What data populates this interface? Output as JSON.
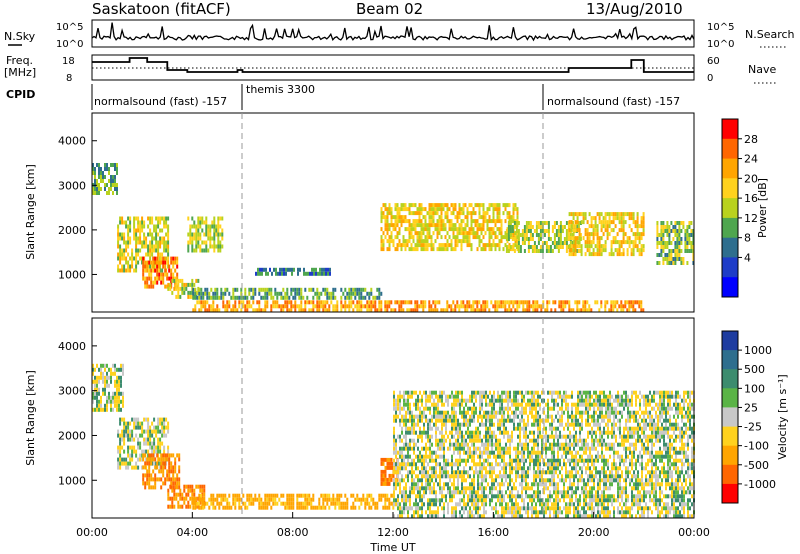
{
  "header": {
    "station": "Saskatoon (fitACF)",
    "beam": "Beam 02",
    "date": "13/Aug/2010"
  },
  "panels": {
    "nsky_label": "N.Sky",
    "nsearch_label": "N.Search",
    "freq_label_line1": "Freq.",
    "freq_label_line2": "[MHz]",
    "nave_label": "Nave",
    "cpid_label": "CPID",
    "noise_ticks_left": [
      "10^5",
      "10^0"
    ],
    "noise_ticks_right": [
      "10^5",
      "10^0"
    ],
    "freq_ticks_left": [
      "18",
      "8"
    ],
    "freq_ticks_right": [
      "60",
      "0"
    ],
    "cpid_segments": [
      "normalsound (fast) -157",
      "themis 3300",
      "normalsound (fast) -157"
    ]
  },
  "axes": {
    "ylabel": "Slant Range [km]",
    "xlabel": "Time UT",
    "y_ticks": [
      "4000",
      "3000",
      "2000",
      "1000"
    ],
    "x_ticks": [
      "00:00",
      "04:00",
      "08:00",
      "12:00",
      "16:00",
      "20:00",
      "00:00"
    ]
  },
  "colorbars": {
    "power": {
      "label": "Power [dB]",
      "ticks": [
        "28",
        "24",
        "20",
        "16",
        "12",
        "8",
        "4"
      ],
      "colors": [
        "#ff0000",
        "#ff6600",
        "#ffa500",
        "#ffd21e",
        "#b9d21e",
        "#4fa64f",
        "#2e6e8e",
        "#1e3cc8",
        "#0000ff"
      ]
    },
    "velocity": {
      "label": "Velocity [m s⁻¹]",
      "ticks": [
        "1000",
        "500",
        "100",
        "25",
        "-25",
        "-100",
        "-500",
        "-1000"
      ],
      "colors": [
        "#1e3ca0",
        "#2e6e8e",
        "#3c8c6e",
        "#5ab446",
        "#c8c8c8",
        "#ffd21e",
        "#ffa500",
        "#ff6600",
        "#ff0000"
      ]
    }
  },
  "chart_data": [
    {
      "type": "heatmap",
      "title": "Power [dB]",
      "xlabel": "Time UT",
      "ylabel": "Slant Range [km]",
      "xlim": [
        0,
        24
      ],
      "ylim": [
        180,
        4600
      ],
      "regions": [
        {
          "t": [
            0.0,
            1.0
          ],
          "r": [
            2800,
            3500
          ],
          "level": 12
        },
        {
          "t": [
            1.0,
            3.0
          ],
          "r": [
            1100,
            2300
          ],
          "level": 18
        },
        {
          "t": [
            2.0,
            3.4
          ],
          "r": [
            700,
            1400
          ],
          "level": 26
        },
        {
          "t": [
            3.0,
            4.2
          ],
          "r": [
            500,
            900
          ],
          "level": 18
        },
        {
          "t": [
            3.8,
            5.2
          ],
          "r": [
            1500,
            2300
          ],
          "level": 16
        },
        {
          "t": [
            4.0,
            11.5
          ],
          "r": [
            450,
            700
          ],
          "level": 12
        },
        {
          "t": [
            6.5,
            9.5
          ],
          "r": [
            1000,
            1150
          ],
          "level": 8
        },
        {
          "t": [
            4.0,
            22.0
          ],
          "r": [
            180,
            420
          ],
          "level": 24
        },
        {
          "t": [
            11.5,
            17.0
          ],
          "r": [
            1600,
            2600
          ],
          "level": 20
        },
        {
          "t": [
            16.5,
            19.5
          ],
          "r": [
            1500,
            2200
          ],
          "level": 16
        },
        {
          "t": [
            19.0,
            22.0
          ],
          "r": [
            1500,
            2400
          ],
          "level": 20
        },
        {
          "t": [
            22.5,
            24.0
          ],
          "r": [
            1300,
            2200
          ],
          "level": 14
        }
      ]
    },
    {
      "type": "heatmap",
      "title": "Velocity [m s⁻¹]",
      "xlabel": "Time UT",
      "ylabel": "Slant Range [km]",
      "xlim": [
        0,
        24
      ],
      "ylim": [
        180,
        4600
      ],
      "regions": [
        {
          "t": [
            0.0,
            1.2
          ],
          "r": [
            2600,
            3600
          ],
          "level": 0
        },
        {
          "t": [
            1.0,
            3.0
          ],
          "r": [
            1300,
            2400
          ],
          "level": 0
        },
        {
          "t": [
            2.0,
            3.5
          ],
          "r": [
            800,
            1600
          ],
          "level": -300
        },
        {
          "t": [
            3.0,
            4.5
          ],
          "r": [
            450,
            900
          ],
          "level": -300
        },
        {
          "t": [
            4.0,
            12.0
          ],
          "r": [
            350,
            700
          ],
          "level": -150
        },
        {
          "t": [
            11.5,
            12.2
          ],
          "r": [
            950,
            1500
          ],
          "level": -300
        },
        {
          "t": [
            12.0,
            24.0
          ],
          "r": [
            1400,
            3000
          ],
          "level": 0
        },
        {
          "t": [
            12.0,
            24.0
          ],
          "r": [
            180,
            1400
          ],
          "level": 0
        }
      ]
    }
  ]
}
